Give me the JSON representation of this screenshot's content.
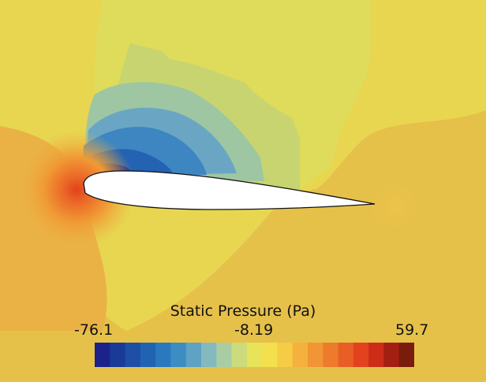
{
  "legend": {
    "title": "Static Pressure (Pa)",
    "min_label": "-76.1",
    "mid_label": "-8.19",
    "max_label": "59.7"
  },
  "colors": {
    "background": "#e6c14a",
    "colormap": [
      "#1b228a",
      "#1a3a98",
      "#1d4fa6",
      "#2163b3",
      "#2a78bd",
      "#3d8cc4",
      "#5ea3c5",
      "#83b9bf",
      "#a8cda3",
      "#cbdb7d",
      "#e7e45a",
      "#f4df4d",
      "#f6cb45",
      "#f5b13d",
      "#f29534",
      "#ee7a2c",
      "#e95e24",
      "#e2421d",
      "#cc2c18",
      "#a31f12",
      "#7a1c0b"
    ]
  }
}
